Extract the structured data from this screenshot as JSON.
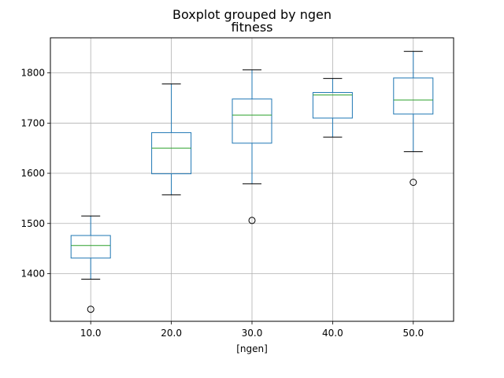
{
  "chart_data": {
    "type": "boxplot",
    "suptitle": "Boxplot grouped by ngen",
    "title": "fitness",
    "xlabel": "[ngen]",
    "ylabel": "",
    "categories": [
      "10.0",
      "20.0",
      "30.0",
      "40.0",
      "50.0"
    ],
    "yticks": [
      1400,
      1500,
      1600,
      1700,
      1800
    ],
    "ylim": [
      1305,
      1870
    ],
    "grid": true,
    "boxes": [
      {
        "whislo": 1389,
        "q1": 1431,
        "med": 1456,
        "q3": 1476,
        "whishi": 1515,
        "fliers": [
          1329
        ]
      },
      {
        "whislo": 1557,
        "q1": 1599,
        "med": 1650,
        "q3": 1681,
        "whishi": 1778,
        "fliers": []
      },
      {
        "whislo": 1579,
        "q1": 1660,
        "med": 1716,
        "q3": 1748,
        "whishi": 1806,
        "fliers": [
          1506
        ]
      },
      {
        "whislo": 1672,
        "q1": 1710,
        "med": 1756,
        "q3": 1761,
        "whishi": 1789,
        "fliers": []
      },
      {
        "whislo": 1643,
        "q1": 1718,
        "med": 1746,
        "q3": 1790,
        "whishi": 1843,
        "fliers": [
          1582
        ]
      }
    ],
    "colors": {
      "box": "#1f77b4",
      "median": "#2ca02c",
      "whisker_cap": "#000000",
      "grid": "#b0b0b0",
      "frame": "#000000"
    }
  }
}
